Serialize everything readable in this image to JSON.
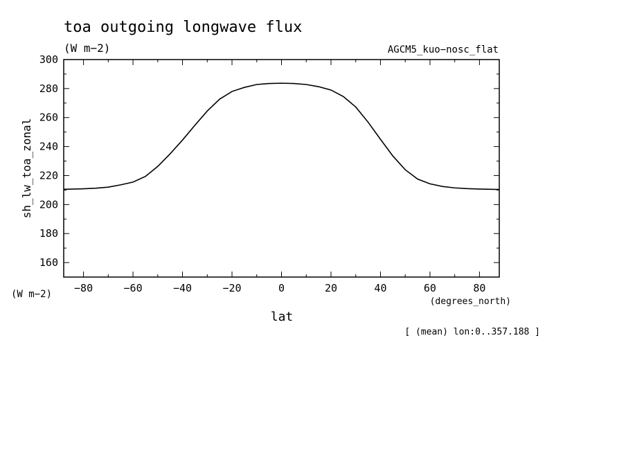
{
  "chart_data": {
    "type": "line",
    "title": "toa outgoing longwave flux",
    "units": "(W m−2)",
    "subtitle_right": "AGCM5_kuo−nosc_flat",
    "ylabel": "sh_lw_toa_zonal",
    "yunits": "(W m−2)",
    "xlabel": "lat",
    "xunits": "(degrees_north)",
    "footnote": "[ (mean) lon:0..357.188 ]",
    "xlim": [
      -88,
      88
    ],
    "ylim": [
      150,
      300
    ],
    "xticks": [
      -80,
      -60,
      -40,
      -20,
      0,
      20,
      40,
      60,
      80
    ],
    "xtick_labels": [
      "−80",
      "−60",
      "−40",
      "−20",
      "0",
      "20",
      "40",
      "60",
      "80"
    ],
    "yticks": [
      160,
      180,
      200,
      220,
      240,
      260,
      280,
      300
    ],
    "ytick_labels": [
      "160",
      "180",
      "200",
      "220",
      "240",
      "260",
      "280",
      "300"
    ],
    "grid": false,
    "series": [
      {
        "x": [
          -88,
          -80,
          -75,
          -70,
          -65,
          -60,
          -55,
          -50,
          -45,
          -40,
          -35,
          -30,
          -25,
          -20,
          -15,
          -10,
          -5,
          0,
          5,
          10,
          15,
          20,
          25,
          30,
          35,
          40,
          45,
          50,
          55,
          60,
          65,
          70,
          75,
          80,
          88
        ],
        "y": [
          210.5,
          210.9,
          211.3,
          212.0,
          213.6,
          215.5,
          219.4,
          226.3,
          235.0,
          244.5,
          254.7,
          264.5,
          272.7,
          278.0,
          280.8,
          282.8,
          283.5,
          283.7,
          283.5,
          282.8,
          281.3,
          279.0,
          274.5,
          267.3,
          256.8,
          245.0,
          233.5,
          224.0,
          217.6,
          214.3,
          212.5,
          211.5,
          211.0,
          210.7,
          210.4
        ]
      }
    ]
  }
}
